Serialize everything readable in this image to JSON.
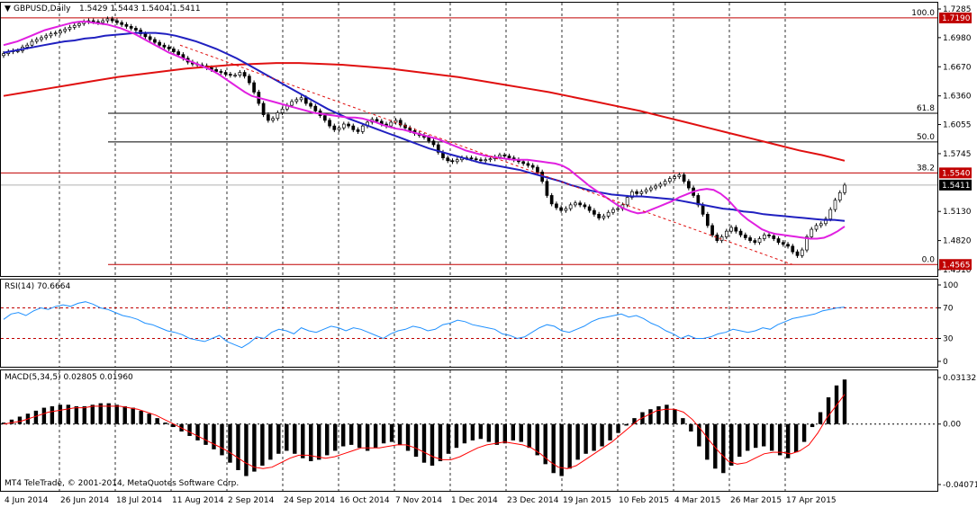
{
  "colors": {
    "background": "#ffffff",
    "candle": "#000000",
    "ma_fast": "#e020e0",
    "ma_mid": "#2020c0",
    "ma_slow": "#e01010",
    "rsi": "#1e90ff",
    "macd_signal": "#ff0000",
    "level_red": "#c00000",
    "price_tag": "#000000"
  },
  "chart_data": [
    {
      "type": "candlestick",
      "title": "GBPUSD,Daily",
      "ohlc_label": "1.5429 1.5443 1.5404 1.5411",
      "x_tick_labels": [
        "4 Jun 2014",
        "26 Jun 2014",
        "18 Jul 2014",
        "11 Aug 2014",
        "2 Sep 2014",
        "24 Sep 2014",
        "16 Oct 2014",
        "7 Nov 2014",
        "1 Dec 2014",
        "23 Dec 2014",
        "19 Jan 2015",
        "10 Feb 2015",
        "4 Mar 2015",
        "26 Mar 2015",
        "17 Apr 2015"
      ],
      "y_tick_labels": [
        "1.7285",
        "1.6980",
        "1.6670",
        "1.6360",
        "1.6055",
        "1.5745",
        "1.5130",
        "1.4820",
        "1.4510"
      ],
      "ylim": [
        1.451,
        1.7285
      ],
      "grid": true,
      "current_price": 1.5411,
      "current_price_label": "1.5411",
      "fib_levels": [
        {
          "label": "100.0",
          "value": 1.719,
          "price_label": "1.7190"
        },
        {
          "label": "61.8",
          "value": 1.6175,
          "price_label": ""
        },
        {
          "label": "50.0",
          "value": 1.587,
          "price_label": ""
        },
        {
          "label": "38.2",
          "value": 1.554,
          "price_label": "1.5540"
        },
        {
          "label": "0.0",
          "value": 1.4565,
          "price_label": "1.4565"
        }
      ],
      "series_close": [
        1.681,
        1.683,
        1.684,
        1.684,
        1.688,
        1.69,
        1.694,
        1.696,
        1.698,
        1.7,
        1.702,
        1.703,
        1.705,
        1.707,
        1.709,
        1.711,
        1.713,
        1.715,
        1.716,
        1.715,
        1.714,
        1.716,
        1.718,
        1.716,
        1.714,
        1.712,
        1.71,
        1.708,
        1.706,
        1.702,
        1.699,
        1.696,
        1.693,
        1.69,
        1.688,
        1.686,
        1.683,
        1.68,
        1.676,
        1.672,
        1.67,
        1.669,
        1.668,
        1.666,
        1.664,
        1.662,
        1.661,
        1.659,
        1.658,
        1.658,
        1.661,
        1.657,
        1.65,
        1.64,
        1.628,
        1.616,
        1.61,
        1.612,
        1.618,
        1.622,
        1.626,
        1.63,
        1.632,
        1.634,
        1.628,
        1.625,
        1.62,
        1.615,
        1.61,
        1.604,
        1.6,
        1.602,
        1.606,
        1.604,
        1.6,
        1.598,
        1.604,
        1.608,
        1.611,
        1.609,
        1.606,
        1.604,
        1.608,
        1.61,
        1.605,
        1.602,
        1.599,
        1.596,
        1.594,
        1.592,
        1.588,
        1.584,
        1.576,
        1.57,
        1.567,
        1.566,
        1.568,
        1.57,
        1.57,
        1.569,
        1.568,
        1.567,
        1.568,
        1.569,
        1.571,
        1.573,
        1.572,
        1.57,
        1.568,
        1.566,
        1.564,
        1.562,
        1.56,
        1.555,
        1.545,
        1.53,
        1.521,
        1.517,
        1.514,
        1.516,
        1.52,
        1.522,
        1.52,
        1.518,
        1.514,
        1.51,
        1.506,
        1.508,
        1.512,
        1.515,
        1.516,
        1.52,
        1.528,
        1.534,
        1.532,
        1.534,
        1.536,
        1.538,
        1.54,
        1.542,
        1.545,
        1.548,
        1.55,
        1.552,
        1.545,
        1.538,
        1.53,
        1.52,
        1.51,
        1.498,
        1.488,
        1.482,
        1.486,
        1.492,
        1.496,
        1.492,
        1.488,
        1.485,
        1.482,
        1.48,
        1.484,
        1.488,
        1.487,
        1.484,
        1.48,
        1.478,
        1.476,
        1.47,
        1.466,
        1.472,
        1.486,
        1.494,
        1.498,
        1.5,
        1.505,
        1.515,
        1.525,
        1.533,
        1.541
      ],
      "series_ma_fast": [
        1.69,
        1.692,
        1.694,
        1.697,
        1.7,
        1.703,
        1.706,
        1.708,
        1.71,
        1.712,
        1.714,
        1.715,
        1.715,
        1.714,
        1.713,
        1.712,
        1.71,
        1.708,
        1.705,
        1.702,
        1.698,
        1.694,
        1.69,
        1.686,
        1.682,
        1.679,
        1.676,
        1.673,
        1.67,
        1.667,
        1.664,
        1.66,
        1.655,
        1.65,
        1.645,
        1.64,
        1.636,
        1.634,
        1.632,
        1.63,
        1.628,
        1.626,
        1.624,
        1.622,
        1.62,
        1.618,
        1.617,
        1.616,
        1.615,
        1.614,
        1.613,
        1.613,
        1.612,
        1.61,
        1.608,
        1.605,
        1.603,
        1.601,
        1.6,
        1.598,
        1.596,
        1.594,
        1.592,
        1.59,
        1.587,
        1.584,
        1.581,
        1.578,
        1.576,
        1.574,
        1.572,
        1.571,
        1.57,
        1.569,
        1.568,
        1.568,
        1.568,
        1.567,
        1.566,
        1.565,
        1.564,
        1.562,
        1.558,
        1.552,
        1.546,
        1.54,
        1.535,
        1.53,
        1.525,
        1.52,
        1.516,
        1.513,
        1.511,
        1.512,
        1.515,
        1.518,
        1.521,
        1.524,
        1.528,
        1.531,
        1.534,
        1.536,
        1.537,
        1.536,
        1.532,
        1.526,
        1.518,
        1.51,
        1.504,
        1.499,
        1.494,
        1.491,
        1.489,
        1.488,
        1.487,
        1.486,
        1.485,
        1.484,
        1.484,
        1.485,
        1.488,
        1.492,
        1.497
      ],
      "series_ma_mid": [
        1.682,
        1.684,
        1.686,
        1.688,
        1.69,
        1.692,
        1.694,
        1.695,
        1.697,
        1.698,
        1.7,
        1.701,
        1.702,
        1.703,
        1.703,
        1.703,
        1.702,
        1.7,
        1.697,
        1.694,
        1.69,
        1.686,
        1.681,
        1.676,
        1.67,
        1.664,
        1.658,
        1.652,
        1.646,
        1.64,
        1.634,
        1.628,
        1.622,
        1.617,
        1.612,
        1.608,
        1.604,
        1.6,
        1.596,
        1.592,
        1.588,
        1.584,
        1.58,
        1.577,
        1.574,
        1.571,
        1.568,
        1.565,
        1.563,
        1.561,
        1.559,
        1.557,
        1.554,
        1.551,
        1.548,
        1.545,
        1.541,
        1.538,
        1.535,
        1.533,
        1.531,
        1.53,
        1.529,
        1.529,
        1.528,
        1.527,
        1.526,
        1.524,
        1.522,
        1.52,
        1.518,
        1.516,
        1.515,
        1.513,
        1.512,
        1.51,
        1.509,
        1.508,
        1.507,
        1.506,
        1.505,
        1.504,
        1.504,
        1.503
      ],
      "series_ma_slow": [
        1.636,
        1.64,
        1.644,
        1.648,
        1.652,
        1.656,
        1.659,
        1.662,
        1.665,
        1.667,
        1.669,
        1.67,
        1.671,
        1.671,
        1.67,
        1.669,
        1.667,
        1.665,
        1.662,
        1.659,
        1.656,
        1.652,
        1.648,
        1.644,
        1.64,
        1.635,
        1.63,
        1.625,
        1.62,
        1.614,
        1.608,
        1.602,
        1.596,
        1.59,
        1.584,
        1.578,
        1.573,
        1.567
      ]
    },
    {
      "type": "line",
      "title": "RSI(14) 70.6664",
      "ylim": [
        0,
        100
      ],
      "y_tick_labels": [
        "100",
        "70",
        "30",
        "0"
      ],
      "levels": [
        70,
        30
      ],
      "series": [
        {
          "values": [
            55,
            62,
            64,
            60,
            66,
            70,
            68,
            72,
            74,
            72,
            76,
            78,
            75,
            70,
            68,
            64,
            60,
            58,
            55,
            50,
            48,
            44,
            40,
            38,
            35,
            30,
            28,
            26,
            30,
            34,
            26,
            22,
            18,
            24,
            32,
            30,
            38,
            42,
            40,
            36,
            44,
            40,
            38,
            42,
            46,
            44,
            40,
            44,
            42,
            38,
            34,
            30,
            36,
            40,
            42,
            46,
            44,
            40,
            42,
            48,
            50,
            54,
            52,
            48,
            46,
            44,
            42,
            36,
            34,
            30,
            32,
            38,
            44,
            48,
            46,
            40,
            38,
            42,
            46,
            52,
            56,
            58,
            60,
            62,
            58,
            60,
            56,
            50,
            46,
            40,
            36,
            30,
            34,
            30,
            30,
            32,
            36,
            38,
            42,
            40,
            38,
            40,
            44,
            42,
            48,
            52,
            56,
            58,
            60,
            62,
            66,
            68,
            70,
            71
          ]
        }
      ]
    },
    {
      "type": "bar",
      "title": "MACD(5,34,5) 0.02805 0.01960",
      "ylim": [
        -0.04071,
        0.03132
      ],
      "y_tick_labels": [
        "0.03132",
        "0.00",
        "-0.04071"
      ],
      "series": [
        {
          "values": [
            0.001,
            0.003,
            0.005,
            0.007,
            0.009,
            0.011,
            0.012,
            0.013,
            0.013,
            0.012,
            0.012,
            0.013,
            0.014,
            0.014,
            0.013,
            0.012,
            0.011,
            0.009,
            0.007,
            0.004,
            0.001,
            -0.002,
            -0.005,
            -0.008,
            -0.011,
            -0.014,
            -0.017,
            -0.021,
            -0.026,
            -0.031,
            -0.035,
            -0.032,
            -0.028,
            -0.024,
            -0.02,
            -0.018,
            -0.02,
            -0.023,
            -0.025,
            -0.024,
            -0.021,
            -0.018,
            -0.015,
            -0.014,
            -0.016,
            -0.018,
            -0.016,
            -0.013,
            -0.012,
            -0.014,
            -0.018,
            -0.022,
            -0.026,
            -0.028,
            -0.025,
            -0.02,
            -0.016,
            -0.013,
            -0.011,
            -0.01,
            -0.012,
            -0.014,
            -0.013,
            -0.011,
            -0.012,
            -0.016,
            -0.021,
            -0.027,
            -0.033,
            -0.035,
            -0.03,
            -0.024,
            -0.02,
            -0.018,
            -0.015,
            -0.011,
            -0.006,
            -0.001,
            0.004,
            0.008,
            0.01,
            0.012,
            0.013,
            0.01,
            0.004,
            -0.005,
            -0.015,
            -0.024,
            -0.03,
            -0.033,
            -0.028,
            -0.022,
            -0.018,
            -0.016,
            -0.015,
            -0.018,
            -0.021,
            -0.023,
            -0.019,
            -0.012,
            -0.002,
            0.008,
            0.018,
            0.026,
            0.03
          ]
        },
        {
          "values": [
            0.0,
            0.001,
            0.002,
            0.004,
            0.006,
            0.008,
            0.009,
            0.01,
            0.011,
            0.011,
            0.012,
            0.012,
            0.012,
            0.012,
            0.011,
            0.01,
            0.008,
            0.006,
            0.003,
            0.0,
            -0.003,
            -0.006,
            -0.009,
            -0.012,
            -0.015,
            -0.018,
            -0.022,
            -0.026,
            -0.029,
            -0.03,
            -0.029,
            -0.026,
            -0.023,
            -0.021,
            -0.021,
            -0.022,
            -0.023,
            -0.022,
            -0.02,
            -0.018,
            -0.016,
            -0.016,
            -0.016,
            -0.015,
            -0.014,
            -0.014,
            -0.016,
            -0.019,
            -0.022,
            -0.024,
            -0.024,
            -0.022,
            -0.019,
            -0.016,
            -0.014,
            -0.013,
            -0.012,
            -0.013,
            -0.014,
            -0.016,
            -0.02,
            -0.025,
            -0.029,
            -0.03,
            -0.028,
            -0.024,
            -0.02,
            -0.016,
            -0.012,
            -0.007,
            -0.002,
            0.003,
            0.006,
            0.009,
            0.01,
            0.01,
            0.008,
            0.003,
            -0.004,
            -0.012,
            -0.019,
            -0.025,
            -0.027,
            -0.026,
            -0.023,
            -0.02,
            -0.019,
            -0.019,
            -0.02,
            -0.018,
            -0.014,
            -0.006,
            0.004,
            0.012,
            0.02
          ]
        }
      ]
    }
  ],
  "copyright": "MT4 TeleTrade, © 2001-2014, MetaQuotes Software Corp."
}
